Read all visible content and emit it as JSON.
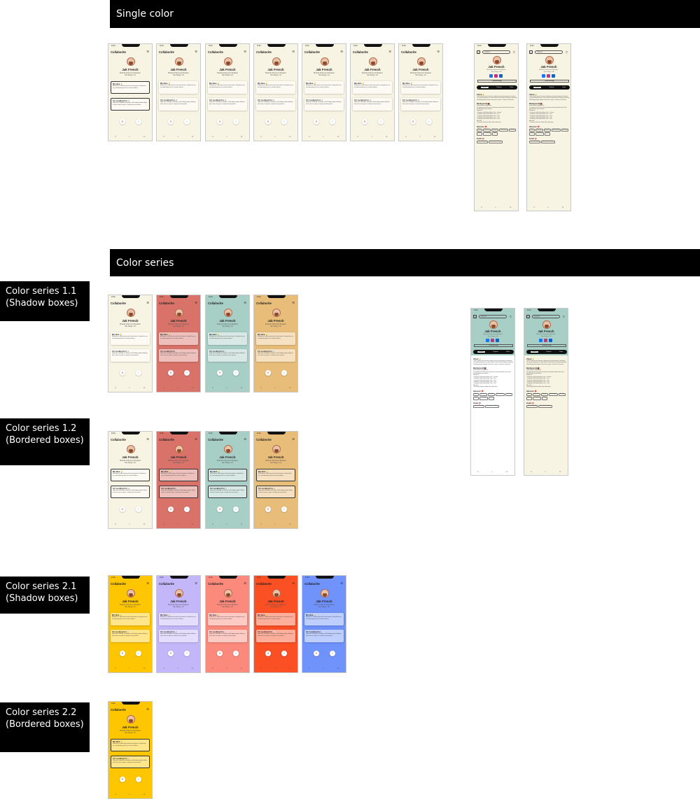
{
  "sections": {
    "single_color": "Single color",
    "color_series": "Color series"
  },
  "labels": {
    "s11": "Color series 1.1 (Shadow boxes)",
    "s12": "Color series 1.2 (Bordered boxes)",
    "s21": "Color series 2.1 (Shadow boxes)",
    "s22": "Color series 2.2 (Bordered boxes)"
  },
  "screen": {
    "time": "9:41",
    "app_name": "Collaborite",
    "profile_name": "Jak French",
    "profile_role": "Musical Instrument Repairer",
    "profile_location": "San Diego, CA",
    "card1_title": "My Idea 💡",
    "card1_text": "A business collecting musical instruments, fixing them up, and donating them to school children.",
    "card2_title": "I'm Looking For 👀",
    "card2_text": "Help with funding, marketing, and finding people willing to learn how to repair a variety of instruments.",
    "reject_icon": "x-icon",
    "accept_icon": "check-icon",
    "nav": [
      "⌂",
      "⌕",
      "☺"
    ]
  },
  "profile": {
    "search_placeholder": "Search",
    "button": "Send Message",
    "tabs": [
      "General",
      "Projects",
      "Posts"
    ],
    "about_title": "About 💡",
    "about_text": "I want to start my own business collecting musical instruments, fixing them up, and donating them to school children. Need help with funding, marketing, and finding people willing to learn how to repair a variety of instruments.",
    "background_title": "Background 💼",
    "impressive_title": "Impressive Accomplishment",
    "impressive_text": "I've repaired over 500 musical instruments and donated them all to local school bands and orchestras.",
    "experience_title": "Experience",
    "experience": [
      "• Company, Job Position Name, Year – Present",
      "• Company, Job Position Name, Year – Year",
      "• Company, Job Position Name, Year – Year",
      "• Company, Job Position Name, Year – Year",
      "• Company, Job Position Name, Year – Year"
    ],
    "education_title": "Education",
    "education_text": "• University, Bachelor of Arts, Music Education",
    "interests_title": "Interests ❤️",
    "interests": [
      "Music",
      "Education",
      "Nonprofit",
      "Woodworking",
      "Teaching",
      "Repair",
      "Community",
      "Travel"
    ],
    "goals_title": "Goals 🎯",
    "goals": [
      "Start the Nonprofit",
      "Find a Business Partner"
    ]
  },
  "colors": {
    "cream": "#f8f4e4",
    "coral": "#d9736a",
    "teal": "#a8cfc6",
    "sand": "#e8bd79",
    "yellow": "#fec501",
    "lavender": "#c4b7f9",
    "salmon": "#fb8a7c",
    "orange": "#fb4f24",
    "blue": "#6f92fb",
    "facebook": "#1877f2",
    "instagram": "#c13584",
    "linkedin": "#0a66c2"
  }
}
